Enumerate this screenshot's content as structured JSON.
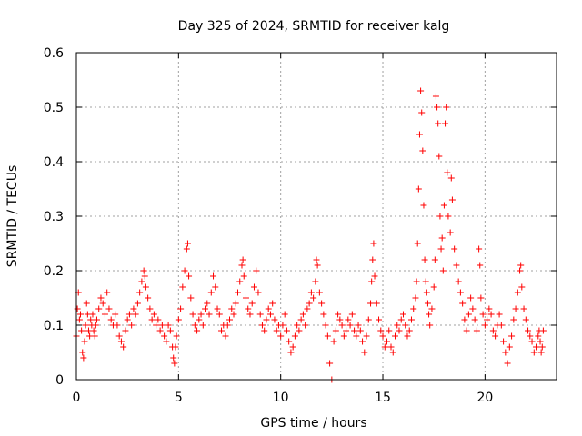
{
  "chart_data": {
    "type": "scatter",
    "title": "Day 325 of 2024, SRMTID for receiver kalg",
    "xlabel": "GPS time / hours",
    "ylabel": "SRMTID / TECUs",
    "xlim": [
      0,
      23.5
    ],
    "ylim": [
      0,
      0.6
    ],
    "xticks": [
      0,
      5,
      10,
      15,
      20
    ],
    "xtick_labels": [
      "0",
      "5",
      "10",
      "15",
      "20"
    ],
    "yticks": [
      0,
      0.1,
      0.2,
      0.3,
      0.4,
      0.5,
      0.6
    ],
    "ytick_labels": [
      "0",
      "0.1",
      "0.2",
      "0.3",
      "0.4",
      "0.5",
      "0.6"
    ],
    "grid": true,
    "marker": "+",
    "color": "#ff0000",
    "series": [
      {
        "name": "SRMTID",
        "points": [
          [
            0.0,
            0.08
          ],
          [
            0.05,
            0.13
          ],
          [
            0.1,
            0.16
          ],
          [
            0.15,
            0.11
          ],
          [
            0.2,
            0.12
          ],
          [
            0.25,
            0.09
          ],
          [
            0.3,
            0.05
          ],
          [
            0.35,
            0.04
          ],
          [
            0.4,
            0.07
          ],
          [
            0.45,
            0.1
          ],
          [
            0.5,
            0.14
          ],
          [
            0.55,
            0.12
          ],
          [
            0.6,
            0.09
          ],
          [
            0.65,
            0.08
          ],
          [
            0.7,
            0.11
          ],
          [
            0.75,
            0.1
          ],
          [
            0.8,
            0.12
          ],
          [
            0.85,
            0.09
          ],
          [
            0.9,
            0.08
          ],
          [
            0.95,
            0.1
          ],
          [
            1.0,
            0.11
          ],
          [
            1.1,
            0.13
          ],
          [
            1.2,
            0.15
          ],
          [
            1.3,
            0.14
          ],
          [
            1.4,
            0.12
          ],
          [
            1.5,
            0.16
          ],
          [
            1.6,
            0.13
          ],
          [
            1.7,
            0.11
          ],
          [
            1.8,
            0.1
          ],
          [
            1.9,
            0.12
          ],
          [
            2.0,
            0.1
          ],
          [
            2.1,
            0.08
          ],
          [
            2.2,
            0.07
          ],
          [
            2.3,
            0.06
          ],
          [
            2.4,
            0.09
          ],
          [
            2.5,
            0.11
          ],
          [
            2.6,
            0.12
          ],
          [
            2.7,
            0.1
          ],
          [
            2.8,
            0.13
          ],
          [
            2.9,
            0.12
          ],
          [
            3.0,
            0.14
          ],
          [
            3.1,
            0.16
          ],
          [
            3.2,
            0.18
          ],
          [
            3.3,
            0.2
          ],
          [
            3.35,
            0.19
          ],
          [
            3.4,
            0.17
          ],
          [
            3.5,
            0.15
          ],
          [
            3.6,
            0.13
          ],
          [
            3.7,
            0.11
          ],
          [
            3.8,
            0.12
          ],
          [
            3.9,
            0.1
          ],
          [
            4.0,
            0.11
          ],
          [
            4.1,
            0.09
          ],
          [
            4.2,
            0.1
          ],
          [
            4.3,
            0.08
          ],
          [
            4.4,
            0.07
          ],
          [
            4.5,
            0.1
          ],
          [
            4.6,
            0.09
          ],
          [
            4.7,
            0.06
          ],
          [
            4.75,
            0.04
          ],
          [
            4.8,
            0.03
          ],
          [
            4.85,
            0.06
          ],
          [
            4.9,
            0.08
          ],
          [
            5.0,
            0.11
          ],
          [
            5.1,
            0.13
          ],
          [
            5.2,
            0.17
          ],
          [
            5.3,
            0.2
          ],
          [
            5.4,
            0.24
          ],
          [
            5.45,
            0.25
          ],
          [
            5.5,
            0.19
          ],
          [
            5.6,
            0.15
          ],
          [
            5.7,
            0.12
          ],
          [
            5.8,
            0.1
          ],
          [
            5.9,
            0.09
          ],
          [
            6.0,
            0.11
          ],
          [
            6.1,
            0.12
          ],
          [
            6.2,
            0.1
          ],
          [
            6.3,
            0.13
          ],
          [
            6.4,
            0.14
          ],
          [
            6.5,
            0.12
          ],
          [
            6.6,
            0.16
          ],
          [
            6.7,
            0.19
          ],
          [
            6.8,
            0.17
          ],
          [
            6.9,
            0.13
          ],
          [
            7.0,
            0.12
          ],
          [
            7.1,
            0.09
          ],
          [
            7.2,
            0.1
          ],
          [
            7.3,
            0.08
          ],
          [
            7.4,
            0.1
          ],
          [
            7.5,
            0.11
          ],
          [
            7.6,
            0.13
          ],
          [
            7.7,
            0.12
          ],
          [
            7.8,
            0.14
          ],
          [
            7.9,
            0.16
          ],
          [
            8.0,
            0.18
          ],
          [
            8.1,
            0.21
          ],
          [
            8.15,
            0.22
          ],
          [
            8.2,
            0.19
          ],
          [
            8.3,
            0.15
          ],
          [
            8.4,
            0.13
          ],
          [
            8.5,
            0.12
          ],
          [
            8.6,
            0.14
          ],
          [
            8.7,
            0.17
          ],
          [
            8.8,
            0.2
          ],
          [
            8.9,
            0.16
          ],
          [
            9.0,
            0.12
          ],
          [
            9.1,
            0.1
          ],
          [
            9.2,
            0.09
          ],
          [
            9.3,
            0.11
          ],
          [
            9.4,
            0.13
          ],
          [
            9.5,
            0.12
          ],
          [
            9.6,
            0.14
          ],
          [
            9.7,
            0.11
          ],
          [
            9.8,
            0.09
          ],
          [
            9.9,
            0.1
          ],
          [
            10.0,
            0.08
          ],
          [
            10.1,
            0.1
          ],
          [
            10.2,
            0.12
          ],
          [
            10.3,
            0.09
          ],
          [
            10.4,
            0.07
          ],
          [
            10.5,
            0.05
          ],
          [
            10.6,
            0.06
          ],
          [
            10.7,
            0.08
          ],
          [
            10.8,
            0.1
          ],
          [
            10.9,
            0.09
          ],
          [
            11.0,
            0.11
          ],
          [
            11.1,
            0.12
          ],
          [
            11.2,
            0.1
          ],
          [
            11.3,
            0.13
          ],
          [
            11.4,
            0.14
          ],
          [
            11.5,
            0.16
          ],
          [
            11.6,
            0.15
          ],
          [
            11.7,
            0.18
          ],
          [
            11.75,
            0.22
          ],
          [
            11.8,
            0.21
          ],
          [
            11.9,
            0.16
          ],
          [
            12.0,
            0.14
          ],
          [
            12.1,
            0.12
          ],
          [
            12.2,
            0.1
          ],
          [
            12.3,
            0.08
          ],
          [
            12.4,
            0.03
          ],
          [
            12.5,
            0.0
          ],
          [
            12.6,
            0.07
          ],
          [
            12.7,
            0.09
          ],
          [
            12.8,
            0.12
          ],
          [
            12.9,
            0.11
          ],
          [
            13.0,
            0.1
          ],
          [
            13.1,
            0.08
          ],
          [
            13.2,
            0.09
          ],
          [
            13.3,
            0.11
          ],
          [
            13.4,
            0.1
          ],
          [
            13.5,
            0.12
          ],
          [
            13.6,
            0.09
          ],
          [
            13.7,
            0.08
          ],
          [
            13.8,
            0.1
          ],
          [
            13.9,
            0.09
          ],
          [
            14.0,
            0.07
          ],
          [
            14.1,
            0.05
          ],
          [
            14.2,
            0.08
          ],
          [
            14.3,
            0.11
          ],
          [
            14.4,
            0.14
          ],
          [
            14.45,
            0.18
          ],
          [
            14.5,
            0.22
          ],
          [
            14.55,
            0.25
          ],
          [
            14.6,
            0.19
          ],
          [
            14.7,
            0.14
          ],
          [
            14.8,
            0.11
          ],
          [
            14.9,
            0.09
          ],
          [
            15.0,
            0.08
          ],
          [
            15.1,
            0.06
          ],
          [
            15.2,
            0.07
          ],
          [
            15.3,
            0.09
          ],
          [
            15.4,
            0.06
          ],
          [
            15.5,
            0.05
          ],
          [
            15.6,
            0.08
          ],
          [
            15.7,
            0.1
          ],
          [
            15.8,
            0.09
          ],
          [
            15.9,
            0.11
          ],
          [
            16.0,
            0.12
          ],
          [
            16.1,
            0.1
          ],
          [
            16.2,
            0.08
          ],
          [
            16.3,
            0.09
          ],
          [
            16.4,
            0.11
          ],
          [
            16.5,
            0.13
          ],
          [
            16.6,
            0.15
          ],
          [
            16.65,
            0.18
          ],
          [
            16.7,
            0.25
          ],
          [
            16.75,
            0.35
          ],
          [
            16.8,
            0.45
          ],
          [
            16.85,
            0.53
          ],
          [
            16.9,
            0.49
          ],
          [
            16.95,
            0.42
          ],
          [
            17.0,
            0.32
          ],
          [
            17.05,
            0.22
          ],
          [
            17.1,
            0.18
          ],
          [
            17.15,
            0.16
          ],
          [
            17.2,
            0.14
          ],
          [
            17.25,
            0.12
          ],
          [
            17.3,
            0.1
          ],
          [
            17.4,
            0.13
          ],
          [
            17.5,
            0.17
          ],
          [
            17.55,
            0.22
          ],
          [
            17.6,
            0.52
          ],
          [
            17.65,
            0.5
          ],
          [
            17.7,
            0.47
          ],
          [
            17.75,
            0.41
          ],
          [
            17.8,
            0.3
          ],
          [
            17.85,
            0.24
          ],
          [
            17.9,
            0.26
          ],
          [
            17.95,
            0.2
          ],
          [
            18.0,
            0.32
          ],
          [
            18.05,
            0.47
          ],
          [
            18.1,
            0.5
          ],
          [
            18.15,
            0.38
          ],
          [
            18.2,
            0.3
          ],
          [
            18.3,
            0.27
          ],
          [
            18.35,
            0.37
          ],
          [
            18.4,
            0.33
          ],
          [
            18.5,
            0.24
          ],
          [
            18.6,
            0.21
          ],
          [
            18.7,
            0.18
          ],
          [
            18.8,
            0.16
          ],
          [
            18.9,
            0.14
          ],
          [
            19.0,
            0.11
          ],
          [
            19.1,
            0.09
          ],
          [
            19.2,
            0.12
          ],
          [
            19.3,
            0.15
          ],
          [
            19.4,
            0.13
          ],
          [
            19.5,
            0.11
          ],
          [
            19.6,
            0.09
          ],
          [
            19.7,
            0.24
          ],
          [
            19.75,
            0.21
          ],
          [
            19.8,
            0.15
          ],
          [
            19.9,
            0.12
          ],
          [
            20.0,
            0.1
          ],
          [
            20.1,
            0.11
          ],
          [
            20.2,
            0.13
          ],
          [
            20.3,
            0.12
          ],
          [
            20.4,
            0.09
          ],
          [
            20.5,
            0.08
          ],
          [
            20.6,
            0.1
          ],
          [
            20.7,
            0.12
          ],
          [
            20.8,
            0.1
          ],
          [
            20.9,
            0.07
          ],
          [
            21.0,
            0.05
          ],
          [
            21.1,
            0.03
          ],
          [
            21.2,
            0.06
          ],
          [
            21.3,
            0.08
          ],
          [
            21.4,
            0.11
          ],
          [
            21.5,
            0.13
          ],
          [
            21.6,
            0.16
          ],
          [
            21.7,
            0.2
          ],
          [
            21.75,
            0.21
          ],
          [
            21.8,
            0.17
          ],
          [
            21.9,
            0.13
          ],
          [
            22.0,
            0.11
          ],
          [
            22.1,
            0.09
          ],
          [
            22.2,
            0.08
          ],
          [
            22.3,
            0.07
          ],
          [
            22.4,
            0.05
          ],
          [
            22.5,
            0.06
          ],
          [
            22.6,
            0.08
          ],
          [
            22.65,
            0.09
          ],
          [
            22.7,
            0.07
          ],
          [
            22.75,
            0.05
          ],
          [
            22.8,
            0.06
          ],
          [
            22.85,
            0.09
          ]
        ]
      }
    ]
  }
}
